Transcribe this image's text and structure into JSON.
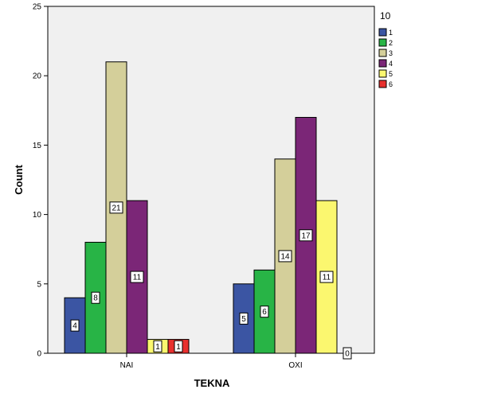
{
  "chart_data": {
    "type": "bar",
    "title": "",
    "xlabel": "TEKNA",
    "ylabel": "Count",
    "ylim": [
      0,
      25
    ],
    "yticks": [
      "0",
      "5",
      "10",
      "15",
      "20",
      "25"
    ],
    "grid": false,
    "legend_title": "10",
    "legend_position": "top-right",
    "categories": [
      "NAI",
      "OXI"
    ],
    "series": [
      {
        "name": "1",
        "color": "#3b55a3",
        "values": [
          4,
          5
        ]
      },
      {
        "name": "2",
        "color": "#28b446",
        "values": [
          8,
          6
        ]
      },
      {
        "name": "3",
        "color": "#d4cf9a",
        "values": [
          21,
          14
        ]
      },
      {
        "name": "4",
        "color": "#7b2677",
        "values": [
          11,
          17
        ]
      },
      {
        "name": "5",
        "color": "#fbf76f",
        "values": [
          1,
          11
        ]
      },
      {
        "name": "6",
        "color": "#e8302e",
        "values": [
          1,
          0
        ]
      }
    ]
  }
}
